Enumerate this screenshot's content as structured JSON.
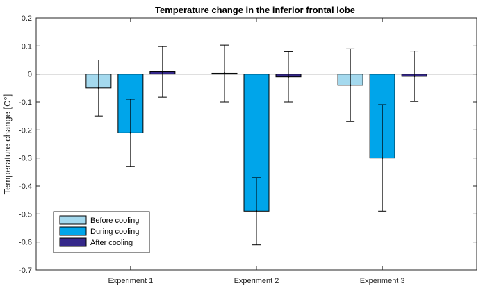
{
  "chart_data": {
    "type": "bar",
    "title": "Temperature change in the inferior frontal lobe",
    "xlabel": "",
    "ylabel": "Temperature change [C°]",
    "categories": [
      "Experiment 1",
      "Experiment 2",
      "Experiment 3"
    ],
    "ylim": [
      -0.7,
      0.2
    ],
    "yticks": [
      0.2,
      0.1,
      0,
      -0.1,
      -0.2,
      -0.3,
      -0.4,
      -0.5,
      -0.6,
      -0.7
    ],
    "ytick_labels": [
      "0.2",
      "0.1",
      "0",
      "-0.1",
      "-0.2",
      "-0.3",
      "-0.4",
      "-0.5",
      "-0.6",
      "-0.7"
    ],
    "grid": false,
    "legend_position": "bottom-left",
    "series": [
      {
        "name": "Before cooling",
        "color": "#a4d9ee",
        "values": [
          -0.05,
          0.003,
          -0.04
        ],
        "err_low": [
          -0.15,
          -0.1,
          -0.17
        ],
        "err_high": [
          0.05,
          0.103,
          0.09
        ]
      },
      {
        "name": "During cooling",
        "color": "#00a5ea",
        "values": [
          -0.21,
          -0.49,
          -0.3
        ],
        "err_low": [
          -0.33,
          -0.61,
          -0.49
        ],
        "err_high": [
          -0.09,
          -0.37,
          -0.11
        ]
      },
      {
        "name": "After cooling",
        "color": "#35288a",
        "values": [
          0.008,
          -0.01,
          -0.008
        ],
        "err_low": [
          -0.083,
          -0.1,
          -0.098
        ],
        "err_high": [
          0.098,
          0.08,
          0.082
        ]
      }
    ]
  }
}
